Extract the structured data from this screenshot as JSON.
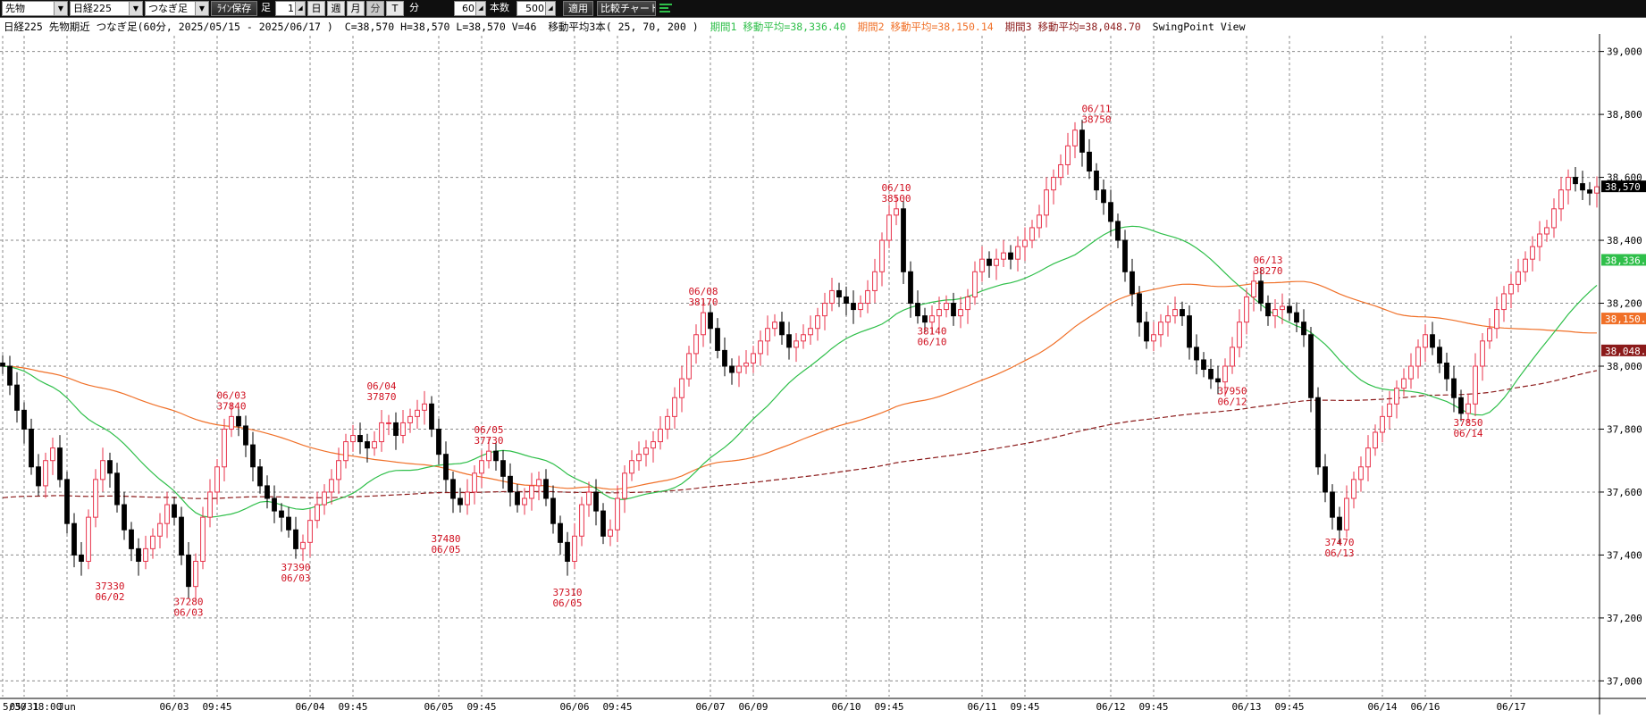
{
  "toolbar": {
    "market_select": "先物",
    "symbol_select": "日経225",
    "series_select": "つなぎ足",
    "line_save_button": "ﾗｲﾝ保存",
    "bar_label": "足",
    "bar_count_value": "1",
    "period_buttons": [
      "日",
      "週",
      "月",
      "分",
      "T"
    ],
    "active_period_index": 3,
    "minute_label": "分",
    "minute_value": "60",
    "bars_label": "本数",
    "bars_value": "500",
    "apply_button": "適用",
    "compare_button": "比較チャート"
  },
  "info": {
    "title": "日経225 先物期近 つなぎ足(60分, 2025/05/15 - 2025/06/17 )",
    "ohlc": "C=38,570 H=38,570 L=38,570 V=46",
    "ma_label": "移動平均3本( 25, 70, 200 )",
    "ma1": "期間1 移動平均=38,336.40",
    "ma2": "期間2 移動平均=38,150.14",
    "ma3": "期間3 移動平均=38,048.70",
    "view": "SwingPoint View"
  },
  "colors": {
    "up": "#e8324a",
    "down": "#000000",
    "ma1": "#2fbf4a",
    "ma2": "#f07028",
    "ma3": "#8b1a1a",
    "swing": "#d01020",
    "grid": "#8a8a8a"
  },
  "chart_data": {
    "type": "candlestick",
    "interval": "60 minutes",
    "ylim": [
      36950,
      39050
    ],
    "y_ticks": [
      "37,000",
      "37,200",
      "37,400",
      "37,600",
      "37,800",
      "38,000",
      "38,200",
      "38,400",
      "38,600",
      "38,800",
      "39,000"
    ],
    "y_tick_values": [
      37000,
      37200,
      37400,
      37600,
      37800,
      38000,
      38200,
      38400,
      38600,
      38800,
      39000
    ],
    "x_labels": [
      {
        "i": 0,
        "text": "5/30 18:00"
      },
      {
        "i": 3,
        "text": "05/31"
      },
      {
        "i": 9,
        "text": "Jun"
      },
      {
        "i": 24,
        "text": "06/03"
      },
      {
        "i": 30,
        "text": "09:45"
      },
      {
        "i": 43,
        "text": "06/04"
      },
      {
        "i": 49,
        "text": "09:45"
      },
      {
        "i": 61,
        "text": "06/05"
      },
      {
        "i": 67,
        "text": "09:45"
      },
      {
        "i": 80,
        "text": "06/06"
      },
      {
        "i": 86,
        "text": "09:45"
      },
      {
        "i": 99,
        "text": "06/07"
      },
      {
        "i": 105,
        "text": "06/09"
      },
      {
        "i": 118,
        "text": "06/10"
      },
      {
        "i": 124,
        "text": "09:45"
      },
      {
        "i": 137,
        "text": "06/11"
      },
      {
        "i": 143,
        "text": "09:45"
      },
      {
        "i": 155,
        "text": "06/12"
      },
      {
        "i": 161,
        "text": "09:45"
      },
      {
        "i": 174,
        "text": "06/13"
      },
      {
        "i": 180,
        "text": "09:45"
      },
      {
        "i": 193,
        "text": "06/14"
      },
      {
        "i": 199,
        "text": "06/16"
      },
      {
        "i": 211,
        "text": "06/17"
      }
    ],
    "closes": [
      38000,
      37940,
      37860,
      37800,
      37680,
      37620,
      37700,
      37740,
      37640,
      37500,
      37400,
      37380,
      37520,
      37640,
      37700,
      37660,
      37560,
      37480,
      37420,
      37380,
      37420,
      37460,
      37500,
      37560,
      37520,
      37400,
      37300,
      37380,
      37520,
      37600,
      37680,
      37800,
      37840,
      37810,
      37750,
      37680,
      37620,
      37580,
      37540,
      37520,
      37480,
      37420,
      37440,
      37510,
      37560,
      37600,
      37640,
      37700,
      37760,
      37780,
      37760,
      37740,
      37760,
      37820,
      37820,
      37780,
      37820,
      37840,
      37860,
      37880,
      37800,
      37720,
      37640,
      37580,
      37560,
      37600,
      37660,
      37700,
      37730,
      37700,
      37650,
      37600,
      37560,
      37580,
      37620,
      37640,
      37580,
      37500,
      37440,
      37380,
      37460,
      37560,
      37600,
      37540,
      37460,
      37480,
      37580,
      37660,
      37700,
      37720,
      37740,
      37760,
      37800,
      37840,
      37900,
      37960,
      38040,
      38100,
      38170,
      38120,
      38050,
      38000,
      37980,
      38000,
      38010,
      38040,
      38080,
      38120,
      38140,
      38100,
      38060,
      38080,
      38100,
      38120,
      38160,
      38200,
      38240,
      38220,
      38200,
      38180,
      38200,
      38240,
      38300,
      38400,
      38480,
      38500,
      38300,
      38200,
      38160,
      38140,
      38160,
      38180,
      38200,
      38160,
      38180,
      38220,
      38300,
      38340,
      38320,
      38340,
      38360,
      38340,
      38380,
      38400,
      38440,
      38480,
      38560,
      38600,
      38640,
      38700,
      38750,
      38680,
      38620,
      38560,
      38520,
      38460,
      38400,
      38300,
      38230,
      38140,
      38080,
      38100,
      38140,
      38160,
      38180,
      38160,
      38060,
      38020,
      37990,
      37960,
      37950,
      38000,
      38060,
      38140,
      38220,
      38270,
      38200,
      38160,
      38180,
      38190,
      38170,
      38140,
      38100,
      37900,
      37680,
      37600,
      37520,
      37480,
      37580,
      37640,
      37680,
      37740,
      37790,
      37840,
      37880,
      37930,
      37960,
      38000,
      38060,
      38100,
      38060,
      38010,
      37960,
      37900,
      37850,
      37880,
      38000,
      38080,
      38120,
      38180,
      38230,
      38260,
      38300,
      38340,
      38380,
      38420,
      38440,
      38500,
      38560,
      38600,
      38580,
      38560,
      38550,
      38570
    ],
    "ma_periods": [
      25,
      70,
      200
    ],
    "ma1_last": 38336.4,
    "ma2_last": 38150.14,
    "ma3_last": 38048.7,
    "last_price": "38,570",
    "last_value": 38570,
    "swing_points": [
      {
        "i": 15,
        "price": "37330",
        "date": "06/02",
        "type": "low"
      },
      {
        "i": 26,
        "price": "37280",
        "date": "06/03",
        "type": "low"
      },
      {
        "i": 32,
        "price": "37840",
        "date": "06/03",
        "type": "high"
      },
      {
        "i": 41,
        "price": "37390",
        "date": "06/03",
        "type": "low"
      },
      {
        "i": 53,
        "price": "37870",
        "date": "06/04",
        "type": "high"
      },
      {
        "i": 62,
        "price": "37480",
        "date": "06/05",
        "type": "low"
      },
      {
        "i": 68,
        "price": "37730",
        "date": "06/05",
        "type": "high"
      },
      {
        "i": 79,
        "price": "37310",
        "date": "06/05",
        "type": "low"
      },
      {
        "i": 98,
        "price": "38170",
        "date": "06/08",
        "type": "high"
      },
      {
        "i": 125,
        "price": "38500",
        "date": "06/10",
        "type": "high"
      },
      {
        "i": 130,
        "price": "38140",
        "date": "06/10",
        "type": "low"
      },
      {
        "i": 153,
        "price": "38750",
        "date": "06/11",
        "type": "high"
      },
      {
        "i": 172,
        "price": "37950",
        "date": "06/12",
        "type": "low"
      },
      {
        "i": 177,
        "price": "38270",
        "date": "06/13",
        "type": "high"
      },
      {
        "i": 187,
        "price": "37470",
        "date": "06/13",
        "type": "low"
      },
      {
        "i": 205,
        "price": "37850",
        "date": "06/14",
        "type": "low"
      }
    ]
  }
}
